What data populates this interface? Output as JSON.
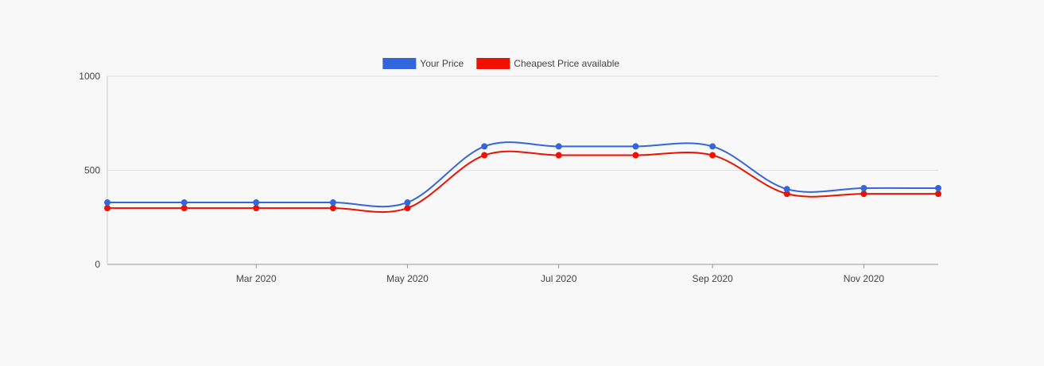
{
  "chart_data": {
    "type": "line",
    "x": [
      "2020-01-01",
      "2020-02-01",
      "2020-03-01",
      "2020-04-01",
      "2020-05-01",
      "2020-06-01",
      "2020-07-01",
      "2020-08-01",
      "2020-09-01",
      "2020-10-01",
      "2020-11-01",
      "2020-12-01"
    ],
    "series": [
      {
        "name": "Your Price",
        "color": "#3366dd",
        "values": [
          329,
          329,
          329,
          329,
          329,
          627,
          627,
          627,
          627,
          400,
          405,
          405
        ]
      },
      {
        "name": "Cheapest Price available",
        "color": "#ee1100",
        "values": [
          299,
          299,
          299,
          299,
          299,
          580,
          580,
          580,
          580,
          375,
          375,
          375
        ]
      }
    ],
    "ylim": [
      0,
      1000
    ],
    "y_ticks": [
      "0",
      "500",
      "1000"
    ],
    "x_ticks": [
      {
        "date": "2020-03-01",
        "label": "Mar 2020"
      },
      {
        "date": "2020-05-01",
        "label": "May 2020"
      },
      {
        "date": "2020-07-01",
        "label": "Jul 2020"
      },
      {
        "date": "2020-09-01",
        "label": "Sep 2020"
      },
      {
        "date": "2020-11-01",
        "label": "Nov 2020"
      }
    ],
    "grid": true,
    "legend_position": "top",
    "curve": "smooth"
  }
}
